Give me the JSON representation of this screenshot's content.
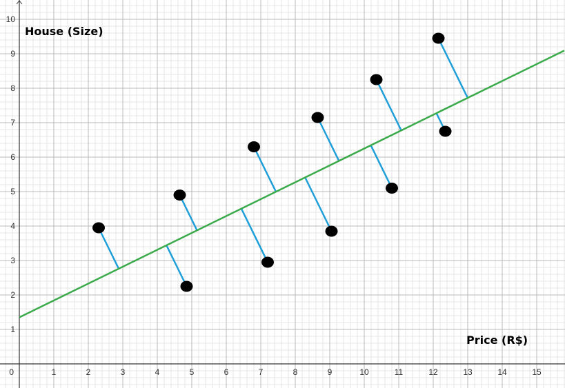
{
  "chart_data": {
    "type": "scatter",
    "title": "",
    "xlabel": "Price (R$)",
    "ylabel": "House (Size)",
    "xlim": [
      -0.55,
      15.8
    ],
    "ylim": [
      -0.7,
      10.5
    ],
    "grid": true,
    "x_ticks": [
      1,
      2,
      3,
      4,
      5,
      6,
      7,
      8,
      9,
      10,
      11,
      12,
      13,
      14,
      15
    ],
    "y_ticks": [
      1,
      2,
      3,
      4,
      5,
      6,
      7,
      8,
      9,
      10
    ],
    "origin_label": "0",
    "regression_line": {
      "slope": 0.49,
      "intercept": 1.35
    },
    "points": [
      {
        "x": 2.3,
        "y": 3.95
      },
      {
        "x": 4.65,
        "y": 4.9
      },
      {
        "x": 4.85,
        "y": 2.25
      },
      {
        "x": 6.8,
        "y": 6.3
      },
      {
        "x": 7.2,
        "y": 2.95
      },
      {
        "x": 8.65,
        "y": 7.15
      },
      {
        "x": 9.05,
        "y": 3.85
      },
      {
        "x": 10.35,
        "y": 8.25
      },
      {
        "x": 10.8,
        "y": 5.1
      },
      {
        "x": 12.15,
        "y": 9.45
      },
      {
        "x": 12.35,
        "y": 6.75
      }
    ],
    "colors": {
      "line": "#3aaa4a",
      "residual": "#1e9fd9",
      "point": "#000000",
      "grid_major": "#b9b9b9",
      "grid_minor": "#e6e6e6"
    }
  }
}
